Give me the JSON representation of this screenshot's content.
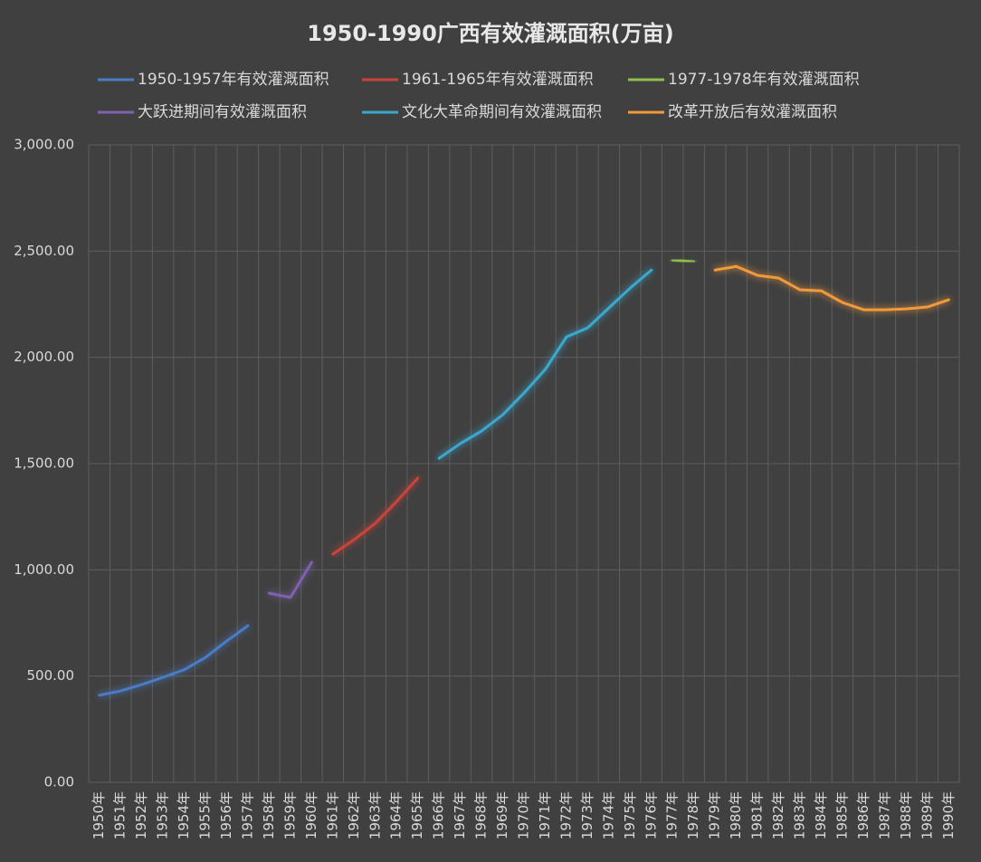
{
  "chart_data": {
    "type": "line",
    "title": "1950-1990广西有效灌溉面积(万亩)",
    "categories": [
      "1950年",
      "1951年",
      "1952年",
      "1953年",
      "1954年",
      "1955年",
      "1956年",
      "1957年",
      "1958年",
      "1959年",
      "1960年",
      "1961年",
      "1962年",
      "1963年",
      "1964年",
      "1965年",
      "1966年",
      "1967年",
      "1968年",
      "1969年",
      "1970年",
      "1971年",
      "1972年",
      "1973年",
      "1974年",
      "1975年",
      "1976年",
      "1977年",
      "1978年",
      "1979年",
      "1980年",
      "1981年",
      "1982年",
      "1983年",
      "1984年",
      "1985年",
      "1986年",
      "1987年",
      "1988年",
      "1989年",
      "1990年"
    ],
    "series": [
      {
        "name": "1950-1957年有效灌溉面积",
        "color": "#4a7cc4",
        "values": [
          410,
          430,
          460,
          494,
          530,
          588,
          665,
          737,
          null,
          null,
          null,
          null,
          null,
          null,
          null,
          null,
          null,
          null,
          null,
          null,
          null,
          null,
          null,
          null,
          null,
          null,
          null,
          null,
          null,
          null,
          null,
          null,
          null,
          null,
          null,
          null,
          null,
          null,
          null,
          null,
          null
        ]
      },
      {
        "name": "1961-1965年有效灌溉面积",
        "color": "#c9443a",
        "values": [
          null,
          null,
          null,
          null,
          null,
          null,
          null,
          null,
          null,
          null,
          null,
          1074,
          1142,
          1219,
          1321,
          1432,
          null,
          null,
          null,
          null,
          null,
          null,
          null,
          null,
          null,
          null,
          null,
          null,
          null,
          null,
          null,
          null,
          null,
          null,
          null,
          null,
          null,
          null,
          null,
          null,
          null
        ]
      },
      {
        "name": "1977-1978年有效灌溉面积",
        "color": "#8fbf4a",
        "values": [
          null,
          null,
          null,
          null,
          null,
          null,
          null,
          null,
          null,
          null,
          null,
          null,
          null,
          null,
          null,
          null,
          null,
          null,
          null,
          null,
          null,
          null,
          null,
          null,
          null,
          null,
          null,
          2458,
          2450,
          null,
          null,
          null,
          null,
          null,
          null,
          null,
          null,
          null,
          null,
          null,
          null
        ]
      },
      {
        "name": "大跃进期间有效灌溉面积",
        "color": "#7e62b0",
        "values": [
          null,
          null,
          null,
          null,
          null,
          null,
          null,
          null,
          890,
          870,
          1035,
          null,
          null,
          null,
          null,
          null,
          null,
          null,
          null,
          null,
          null,
          null,
          null,
          null,
          null,
          null,
          null,
          null,
          null,
          null,
          null,
          null,
          null,
          null,
          null,
          null,
          null,
          null,
          null,
          null,
          null
        ]
      },
      {
        "name": "文化大革命期间有效灌溉面积",
        "color": "#3aa8cf",
        "values": [
          null,
          null,
          null,
          null,
          null,
          null,
          null,
          null,
          null,
          null,
          null,
          null,
          null,
          null,
          null,
          null,
          1525,
          1594,
          1653,
          1730,
          1832,
          1943,
          2096,
          2139,
          2233,
          2326,
          2411,
          null,
          null,
          null,
          null,
          null,
          null,
          null,
          null,
          null,
          null,
          null,
          null,
          null,
          null
        ]
      },
      {
        "name": "改革开放后有效灌溉面积",
        "color": "#f29a3a",
        "values": [
          null,
          null,
          null,
          null,
          null,
          null,
          null,
          null,
          null,
          null,
          null,
          null,
          null,
          null,
          null,
          null,
          null,
          null,
          null,
          null,
          null,
          null,
          null,
          null,
          null,
          null,
          null,
          null,
          null,
          2411,
          2428,
          2386,
          2373,
          2318,
          2313,
          2258,
          2224,
          2224,
          2228,
          2237,
          2271
        ]
      }
    ],
    "ylim": [
      0,
      3000
    ],
    "yticks": [
      {
        "value": 0,
        "label": "0.00"
      },
      {
        "value": 500,
        "label": "500.00"
      },
      {
        "value": 1000,
        "label": "1,000.00"
      },
      {
        "value": 1500,
        "label": "1,500.00"
      },
      {
        "value": 2000,
        "label": "2,000.00"
      },
      {
        "value": 2500,
        "label": "2,500.00"
      },
      {
        "value": 3000,
        "label": "3,000.00"
      }
    ],
    "grid": true,
    "legend": "top"
  }
}
